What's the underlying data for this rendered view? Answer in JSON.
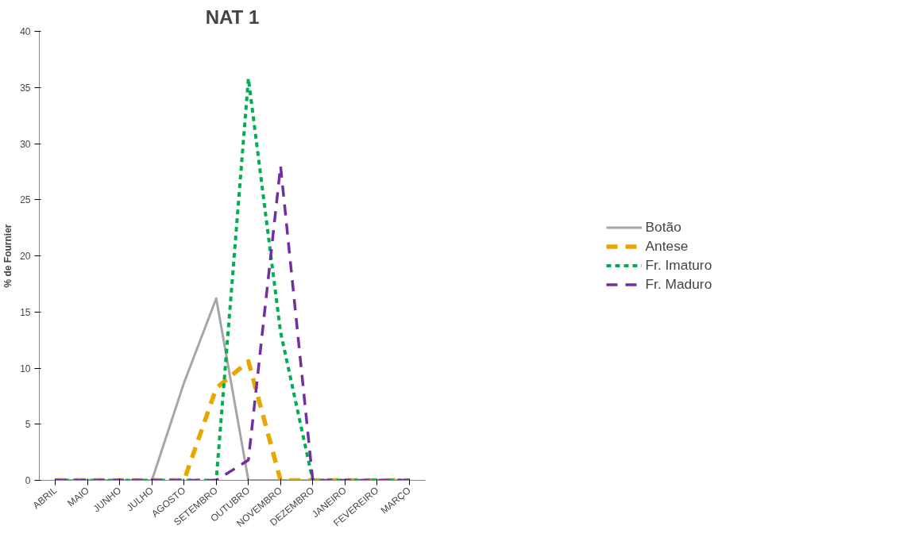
{
  "chart_data": {
    "type": "line",
    "title": "NAT 1",
    "ylabel": "% de Fournier",
    "categories": [
      "ABRIL",
      "MAIO",
      "JUNHO",
      "JULHO",
      "AGOSTO",
      "SETEMBRO",
      "OUTUBRO",
      "NOVEMBRO",
      "DEZEMBRO",
      "JANEIRO",
      "FEVEREIRO",
      "MARÇO"
    ],
    "series": [
      {
        "name": "Botão",
        "color": "#a6a6a6",
        "line_style": "solid",
        "values": [
          0,
          0,
          0,
          0,
          8.7,
          16.2,
          0,
          0,
          0,
          0,
          0,
          0
        ]
      },
      {
        "name": "Antese",
        "color": "#e6a800",
        "line_style": "dashed",
        "values": [
          0,
          0,
          0,
          0,
          0,
          8.2,
          10.6,
          0,
          0,
          0,
          0,
          0
        ]
      },
      {
        "name": "Fr. Imaturo",
        "color": "#00b050",
        "line_style": "dotted",
        "values": [
          0,
          0,
          0,
          0,
          0,
          0,
          35.8,
          13.2,
          0,
          0,
          0,
          0
        ]
      },
      {
        "name": "Fr. Maduro",
        "color": "#7030a0",
        "line_style": "dashed",
        "values": [
          0,
          0,
          0,
          0,
          0,
          0,
          1.8,
          28,
          0,
          0,
          0,
          0
        ]
      }
    ],
    "ylim": [
      0,
      40
    ],
    "yticks": [
      0,
      5,
      10,
      15,
      20,
      25,
      30,
      35,
      40
    ],
    "grid": false,
    "legend": "right",
    "marker": "none"
  }
}
